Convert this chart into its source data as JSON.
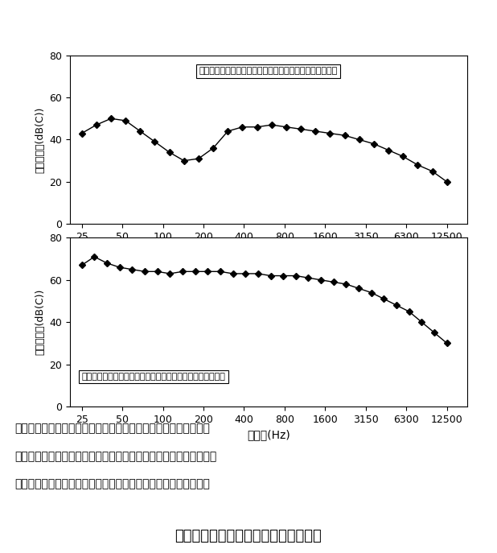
{
  "x_labels": [
    "25",
    "50",
    "100",
    "200",
    "400",
    "800",
    "1600",
    "3150",
    "6300",
    "12500"
  ],
  "chart1_title": "快適性評価の高い音圧スペクトル（土水路１：タイプ１）",
  "chart1_ylabel": "音圧レベル(dB(C))",
  "chart1_xlabel": "周波数(Hz)",
  "chart1_ylim": [
    0,
    80
  ],
  "chart1_yticks": [
    0,
    20,
    40,
    60,
    80
  ],
  "chart1_values": [
    43,
    47,
    50,
    49,
    44,
    39,
    34,
    30,
    31,
    36,
    44,
    46,
    46,
    47,
    46,
    45,
    44,
    43,
    42,
    40,
    38,
    35,
    32,
    28,
    25,
    20
  ],
  "chart2_title": "快適性評価の低い音圧スペクトル（頭首工魚道：タイプ２）",
  "chart2_ylabel": "音圧レベル(dB(C))",
  "chart2_xlabel": "周波数(Hz)",
  "chart2_ylim": [
    0,
    80
  ],
  "chart2_yticks": [
    0,
    20,
    40,
    60,
    80
  ],
  "chart2_values": [
    67,
    71,
    68,
    66,
    65,
    64,
    64,
    63,
    64,
    64,
    64,
    64,
    63,
    63,
    63,
    62,
    62,
    62,
    61,
    60,
    59,
    58,
    56,
    54,
    51,
    48,
    45,
    40,
    35,
    30
  ],
  "notes": [
    "（注１）　評価結果から、代表的な２種類のスペクトルを示す。",
    "（注２）　スペクトルの選好性、タイプ１：高い、タイプ２：低い",
    "（注３）　音圧レベルとは、音源の物理的な音の大きさを表す。"
  ],
  "figure_caption": "図３　周波数スペクトル特性と選好性",
  "line_color": "#000000",
  "marker": "D",
  "marker_size": 4,
  "background_color": "#ffffff",
  "note_fontsize": 10,
  "caption_fontsize": 13
}
